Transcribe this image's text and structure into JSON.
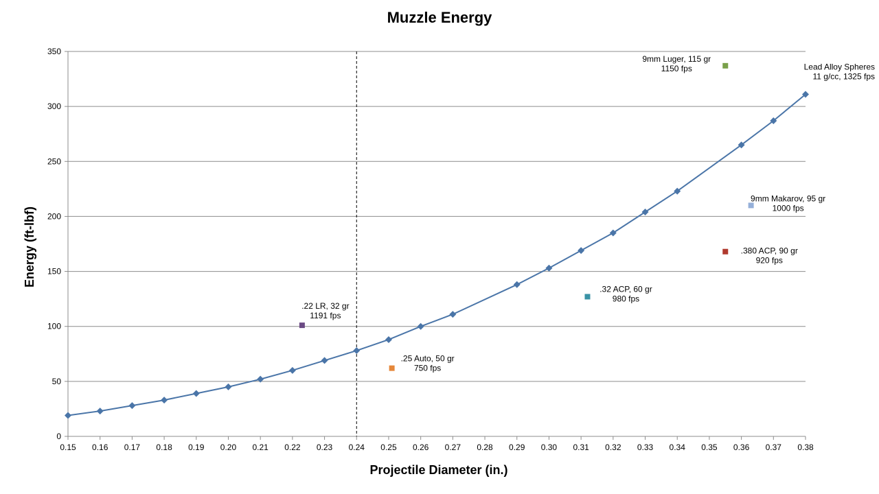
{
  "chart_data": {
    "type": "scatter",
    "title": "Muzzle Energy",
    "xlabel": "Projectile Diameter (in.)",
    "ylabel": "Energy (ft-lbf)",
    "xlim": [
      0.15,
      0.38
    ],
    "ylim": [
      0,
      350
    ],
    "x_ticks": [
      "0.15",
      "0.16",
      "0.17",
      "0.18",
      "0.19",
      "0.20",
      "0.21",
      "0.22",
      "0.23",
      "0.24",
      "0.25",
      "0.26",
      "0.27",
      "0.28",
      "0.29",
      "0.30",
      "0.31",
      "0.32",
      "0.33",
      "0.34",
      "0.35",
      "0.36",
      "0.37",
      "0.38"
    ],
    "y_ticks": [
      "0",
      "50",
      "100",
      "150",
      "200",
      "250",
      "300",
      "350"
    ],
    "grid": "horizontal",
    "reference_line": {
      "x": 0.24,
      "style": "dashed",
      "color": "#000000"
    },
    "series": [
      {
        "kind": "line",
        "marker": "diamond",
        "color": "#4a75a8",
        "label_lines": [
          "Lead Alloy Spheres",
          "11 g/cc, 1325 fps"
        ],
        "x": [
          0.15,
          0.16,
          0.17,
          0.18,
          0.19,
          0.2,
          0.21,
          0.22,
          0.23,
          0.24,
          0.25,
          0.26,
          0.27,
          0.29,
          0.3,
          0.31,
          0.32,
          0.33,
          0.34,
          0.36,
          0.37,
          0.38
        ],
        "y": [
          19,
          23,
          28,
          33,
          39,
          45,
          52,
          60,
          69,
          78,
          88,
          100,
          111,
          138,
          153,
          169,
          185,
          204,
          223,
          265,
          287,
          311
        ]
      },
      {
        "kind": "point",
        "marker": "square",
        "color": "#6b4a84",
        "x": 0.223,
        "y": 101,
        "label_lines": [
          ".22 LR, 32 gr",
          "1191 fps"
        ]
      },
      {
        "kind": "point",
        "marker": "square",
        "color": "#e5873a",
        "x": 0.251,
        "y": 62,
        "label_lines": [
          ".25 Auto, 50 gr",
          "750 fps"
        ]
      },
      {
        "kind": "point",
        "marker": "square",
        "color": "#3a93a6",
        "x": 0.312,
        "y": 127,
        "label_lines": [
          ".32 ACP, 60 gr",
          "980 fps"
        ]
      },
      {
        "kind": "point",
        "marker": "square",
        "color": "#b03a2e",
        "x": 0.355,
        "y": 168,
        "label_lines": [
          ".380 ACP, 90 gr",
          "920 fps"
        ]
      },
      {
        "kind": "point",
        "marker": "square",
        "color": "#95b0d9",
        "x": 0.363,
        "y": 210,
        "label_lines": [
          "9mm Makarov, 95 gr",
          "1000 fps"
        ]
      },
      {
        "kind": "point",
        "marker": "square",
        "color": "#79a04a",
        "x": 0.355,
        "y": 337,
        "label_lines": [
          "9mm Luger, 115 gr",
          "1150 fps"
        ]
      }
    ]
  }
}
